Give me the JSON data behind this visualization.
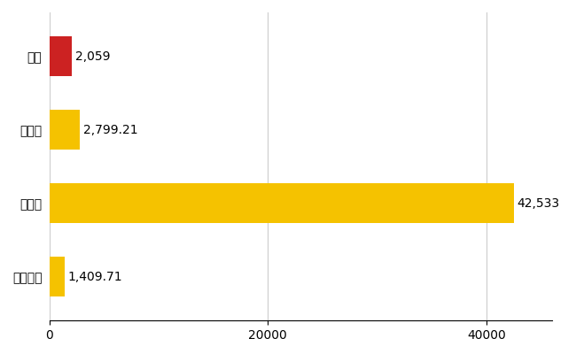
{
  "categories": [
    "緑区",
    "県平均",
    "県最大",
    "全国平均"
  ],
  "values": [
    2059,
    2799.21,
    42533,
    1409.71
  ],
  "bar_colors": [
    "#cc2222",
    "#f5c200",
    "#f5c200",
    "#f5c200"
  ],
  "value_labels": [
    "2,059",
    "2,799.21",
    "42,533",
    "1,409.71"
  ],
  "xlim": [
    0,
    46000
  ],
  "xticks": [
    0,
    20000,
    40000
  ],
  "xticklabels": [
    "0",
    "20000",
    "40000"
  ],
  "background_color": "#ffffff",
  "grid_color": "#cccccc",
  "bar_height": 0.55,
  "label_fontsize": 10,
  "tick_fontsize": 10
}
